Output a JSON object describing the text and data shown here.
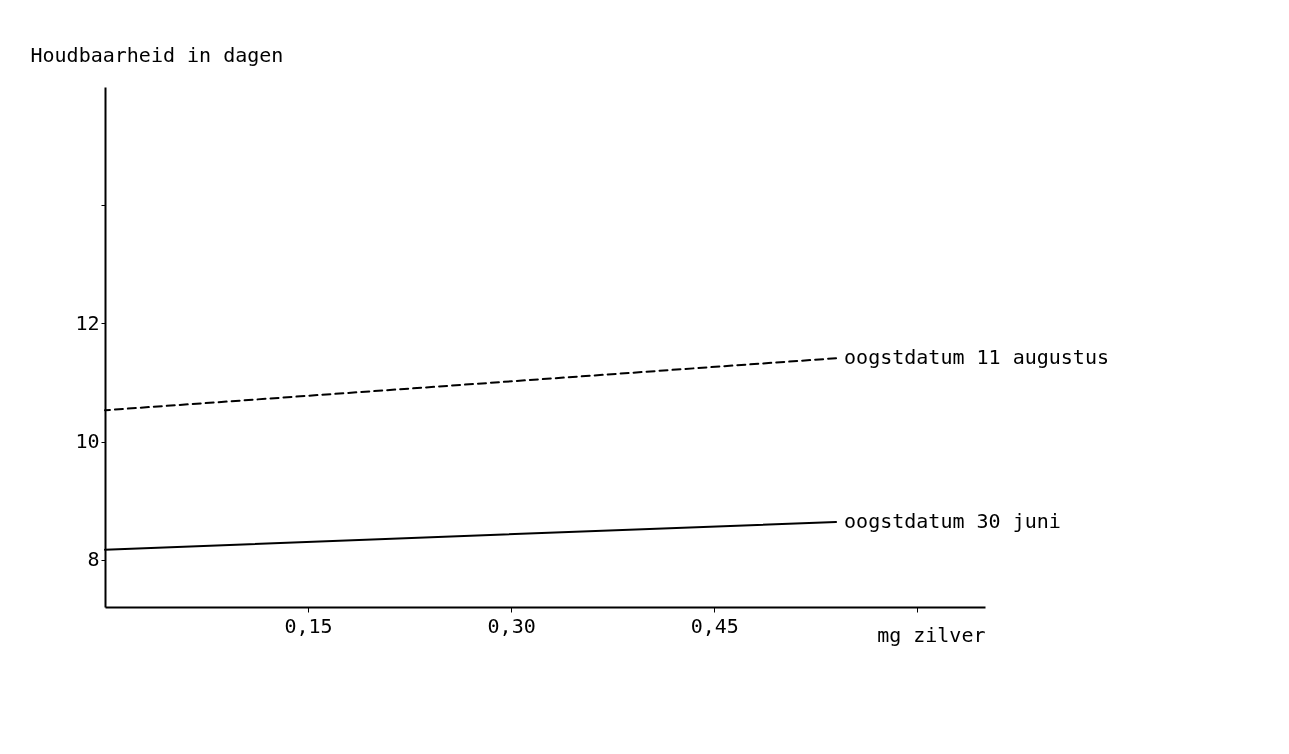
{
  "chart_data": {
    "type": "line",
    "ylabel": "Houdbaarheid in dagen",
    "xlabel": "mg zilver",
    "x": [
      0,
      0.54
    ],
    "series": [
      {
        "name": "oogstdatum 11 augustus",
        "color": "#000000",
        "values": [
          10.53,
          11.41
        ],
        "line_style": "dashed"
      },
      {
        "name": "oogstdatum 30 juni",
        "color": "#000000",
        "values": [
          8.17,
          8.64
        ],
        "line_style": "solid"
      }
    ],
    "xlim": [
      0,
      0.65
    ],
    "xticks": [
      {
        "value": 0.15,
        "label": "0,15"
      },
      {
        "value": 0.3,
        "label": "0,30"
      },
      {
        "value": 0.45,
        "label": "0,45"
      },
      {
        "value": 0.6,
        "label": null
      }
    ],
    "ylim": [
      7.2,
      16
    ],
    "yticks": [
      8,
      10,
      12,
      {
        "value": 14,
        "label": null
      }
    ],
    "grid": false,
    "legend": false,
    "marker": "none"
  }
}
